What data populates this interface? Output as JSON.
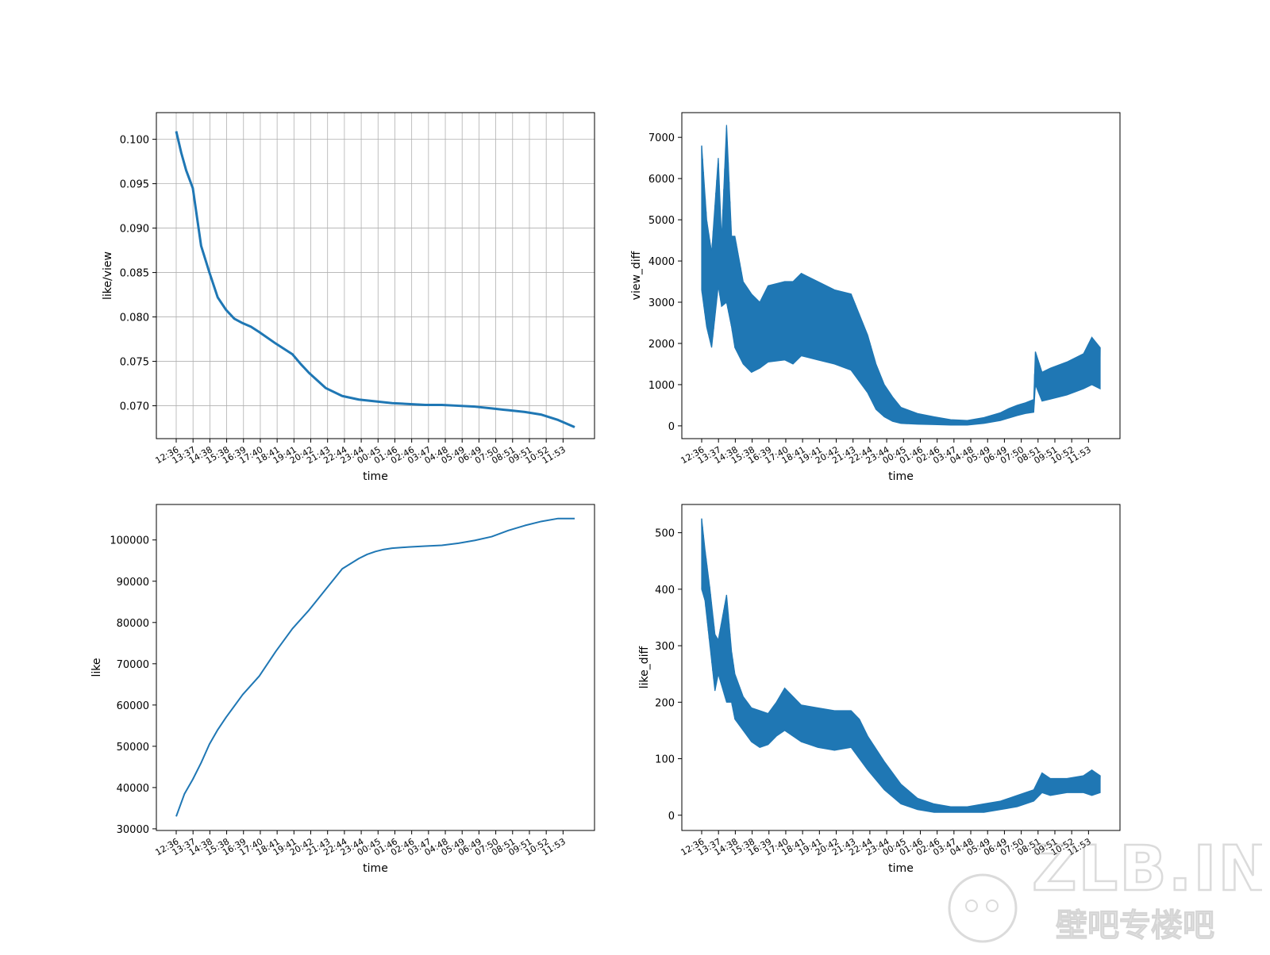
{
  "figure": {
    "background": "#ffffff",
    "line_color": "#1f77b4",
    "grid_color": "#b0b0b0"
  },
  "chart_data": [
    {
      "id": "like_view",
      "type": "line",
      "xlabel": "time",
      "ylabel": "like/view",
      "grid": true,
      "xticks": [
        "12:36",
        "13:37",
        "14:38",
        "15:38",
        "16:39",
        "17:40",
        "18:41",
        "19:41",
        "20:42",
        "21:43",
        "22:44",
        "23:44",
        "00:45",
        "01:46",
        "02:46",
        "03:47",
        "04:48",
        "05:49",
        "06:49",
        "07:50",
        "08:51",
        "09:51",
        "10:52",
        "11:53"
      ],
      "yticks": [
        "0.100",
        "0.095",
        "0.090",
        "0.085",
        "0.080",
        "0.075",
        "0.070"
      ],
      "ylim": [
        0.0663,
        0.103
      ],
      "x_hours": [
        0,
        0.3,
        0.6,
        1.0,
        1.5,
        2.0,
        2.5,
        3.0,
        3.5,
        4.0,
        4.5,
        5.0,
        6.0,
        7.0,
        7.5,
        8.0,
        9.0,
        10.0,
        11.0,
        12.0,
        13.0,
        14.0,
        15.0,
        16.0,
        17.0,
        18.0,
        19.0,
        20.0,
        21.0,
        22.0,
        23.0,
        23.5,
        24.0
      ],
      "values": [
        0.1009,
        0.0985,
        0.0965,
        0.0945,
        0.088,
        0.085,
        0.0822,
        0.0808,
        0.0798,
        0.0793,
        0.0789,
        0.0783,
        0.077,
        0.0758,
        0.0747,
        0.0737,
        0.072,
        0.0711,
        0.0707,
        0.0705,
        0.0703,
        0.0702,
        0.0701,
        0.0701,
        0.07,
        0.0699,
        0.0697,
        0.0695,
        0.0693,
        0.069,
        0.0684,
        0.068,
        0.0676
      ]
    },
    {
      "id": "view_diff",
      "type": "line",
      "xlabel": "time",
      "ylabel": "view_diff",
      "grid": false,
      "band": true,
      "xticks": [
        "12:36",
        "13:37",
        "14:38",
        "15:38",
        "16:39",
        "17:40",
        "18:41",
        "19:41",
        "20:42",
        "21:43",
        "22:44",
        "23:44",
        "00:45",
        "01:46",
        "02:46",
        "03:47",
        "04:48",
        "05:49",
        "06:49",
        "07:50",
        "08:51",
        "09:51",
        "10:52",
        "11:53"
      ],
      "yticks": [
        "7000",
        "6000",
        "5000",
        "4000",
        "3000",
        "2000",
        "1000",
        "0"
      ],
      "ylim": [
        -310,
        7600
      ],
      "x_hours": [
        0,
        0.3,
        0.6,
        1.0,
        1.2,
        1.5,
        1.8,
        2.0,
        2.5,
        3.0,
        3.5,
        4.0,
        5.0,
        5.5,
        6.0,
        7.0,
        8.0,
        9.0,
        10.0,
        10.5,
        11.0,
        11.5,
        12.0,
        13.0,
        14.0,
        15.0,
        16.0,
        17.0,
        18.0,
        18.5,
        19.0,
        19.5,
        20.0,
        20.1,
        20.5,
        21.0,
        22.0,
        23.0,
        23.5,
        24.0
      ],
      "upper": [
        6800,
        5000,
        4200,
        6500,
        4500,
        7300,
        4600,
        4600,
        3500,
        3200,
        3000,
        3400,
        3500,
        3500,
        3700,
        3500,
        3300,
        3200,
        2200,
        1500,
        1000,
        700,
        450,
        300,
        220,
        150,
        130,
        200,
        320,
        420,
        500,
        560,
        640,
        1800,
        1300,
        1400,
        1550,
        1750,
        2150,
        1900
      ],
      "lower": [
        3300,
        2400,
        1900,
        3400,
        2900,
        3000,
        2400,
        1900,
        1500,
        1300,
        1400,
        1550,
        1600,
        1500,
        1700,
        1600,
        1500,
        1350,
        800,
        400,
        220,
        110,
        60,
        40,
        30,
        20,
        20,
        60,
        130,
        190,
        250,
        300,
        330,
        1000,
        600,
        650,
        750,
        900,
        1000,
        900
      ]
    },
    {
      "id": "like",
      "type": "line",
      "xlabel": "time",
      "ylabel": "like",
      "grid": false,
      "xticks": [
        "12:36",
        "13:37",
        "14:38",
        "15:38",
        "16:39",
        "17:40",
        "18:41",
        "19:41",
        "20:42",
        "21:43",
        "22:44",
        "23:44",
        "00:45",
        "01:46",
        "02:46",
        "03:47",
        "04:48",
        "05:49",
        "06:49",
        "07:50",
        "08:51",
        "09:51",
        "10:52",
        "11:53"
      ],
      "yticks": [
        "100000",
        "90000",
        "80000",
        "70000",
        "60000",
        "50000",
        "40000",
        "30000"
      ],
      "ylim": [
        29600,
        108600
      ],
      "x_hours": [
        0,
        0.5,
        1.0,
        1.5,
        2.0,
        2.5,
        3.0,
        4.0,
        5.0,
        6.0,
        7.0,
        8.0,
        9.0,
        10.0,
        11.0,
        11.5,
        12.0,
        12.5,
        13.0,
        14.0,
        15.0,
        16.0,
        17.0,
        18.0,
        19.0,
        20.0,
        21.0,
        22.0,
        23.0,
        24.0
      ],
      "values": [
        33000,
        38500,
        42000,
        46000,
        50500,
        54000,
        57000,
        62500,
        67000,
        73000,
        78500,
        83000,
        88000,
        93000,
        95500,
        96500,
        97200,
        97700,
        98000,
        98300,
        98500,
        98700,
        99200,
        99900,
        100800,
        102300,
        103500,
        104500,
        105200,
        105200
      ]
    },
    {
      "id": "like_diff",
      "type": "line",
      "xlabel": "time",
      "ylabel": "like_diff",
      "grid": false,
      "band": true,
      "xticks": [
        "12:36",
        "13:37",
        "14:38",
        "15:38",
        "16:39",
        "17:40",
        "18:41",
        "19:41",
        "20:42",
        "21:43",
        "22:44",
        "23:44",
        "00:45",
        "01:46",
        "02:46",
        "03:47",
        "04:48",
        "05:49",
        "06:49",
        "07:50",
        "08:51",
        "09:51",
        "10:52",
        "11:53"
      ],
      "yticks": [
        "500",
        "400",
        "300",
        "200",
        "100",
        "0"
      ],
      "ylim": [
        -27,
        550
      ],
      "x_hours": [
        0,
        0.2,
        0.5,
        0.8,
        1.0,
        1.5,
        1.8,
        2.0,
        2.5,
        3.0,
        3.5,
        4.0,
        4.5,
        5.0,
        6.0,
        7.0,
        8.0,
        9.0,
        9.5,
        10.0,
        11.0,
        12.0,
        13.0,
        14.0,
        15.0,
        16.0,
        17.0,
        18.0,
        19.0,
        20.0,
        20.5,
        21.0,
        22.0,
        23.0,
        23.5,
        24.0
      ],
      "upper": [
        525,
        470,
        400,
        320,
        310,
        390,
        290,
        250,
        210,
        190,
        185,
        180,
        200,
        225,
        195,
        190,
        185,
        185,
        170,
        140,
        95,
        55,
        30,
        20,
        15,
        15,
        20,
        25,
        35,
        45,
        75,
        65,
        65,
        70,
        80,
        70
      ],
      "lower": [
        400,
        380,
        300,
        220,
        250,
        200,
        200,
        170,
        150,
        130,
        120,
        125,
        140,
        150,
        130,
        120,
        115,
        120,
        100,
        80,
        45,
        20,
        10,
        5,
        5,
        5,
        5,
        10,
        15,
        25,
        40,
        35,
        40,
        40,
        35,
        40
      ]
    }
  ],
  "watermark": {
    "line1": "ZLB.INK",
    "line2": "壁吧专楼吧"
  }
}
